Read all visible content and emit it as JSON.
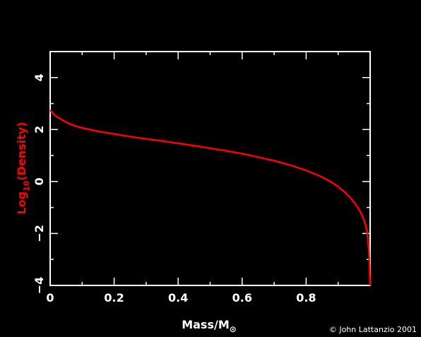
{
  "chart_data": {
    "type": "line",
    "xlabel": "Mass/M",
    "xlabel_symbol": "⊙",
    "ylabel_prefix": "Log",
    "ylabel_subscript": "10",
    "ylabel_suffix": "(Density)",
    "xlim": [
      0,
      1.0
    ],
    "ylim": [
      -4,
      5
    ],
    "xticks": [
      0,
      0.2,
      0.4,
      0.6,
      0.8
    ],
    "xtick_labels": [
      "0",
      "0.2",
      "0.4",
      "0.6",
      "0.8"
    ],
    "yticks": [
      -4,
      -2,
      0,
      2,
      4
    ],
    "ytick_labels": [
      "−4",
      "−2",
      "0",
      "2",
      "4"
    ],
    "grid": false,
    "series": [
      {
        "color": "#ff0000",
        "x": [
          0,
          0.01,
          0.02,
          0.04,
          0.06,
          0.08,
          0.1,
          0.15,
          0.2,
          0.25,
          0.3,
          0.35,
          0.4,
          0.45,
          0.5,
          0.55,
          0.6,
          0.65,
          0.7,
          0.75,
          0.8,
          0.85,
          0.88,
          0.9,
          0.92,
          0.94,
          0.95,
          0.96,
          0.97,
          0.98,
          0.985,
          0.99,
          0.993,
          0.995,
          0.997,
          0.998,
          0.999,
          1.0
        ],
        "y": [
          2.75,
          2.6,
          2.5,
          2.35,
          2.22,
          2.13,
          2.06,
          1.93,
          1.83,
          1.73,
          1.64,
          1.56,
          1.47,
          1.38,
          1.28,
          1.18,
          1.07,
          0.94,
          0.8,
          0.63,
          0.43,
          0.17,
          -0.03,
          -0.2,
          -0.4,
          -0.65,
          -0.8,
          -0.98,
          -1.18,
          -1.45,
          -1.65,
          -1.9,
          -2.2,
          -2.5,
          -2.9,
          -3.2,
          -3.6,
          -4.0
        ]
      }
    ]
  },
  "credit": "© John Lattanzio 2001",
  "colors": {
    "background": "#000000",
    "axis": "#ffffff",
    "line": "#ff0000",
    "ylabel": "#ff0000"
  }
}
